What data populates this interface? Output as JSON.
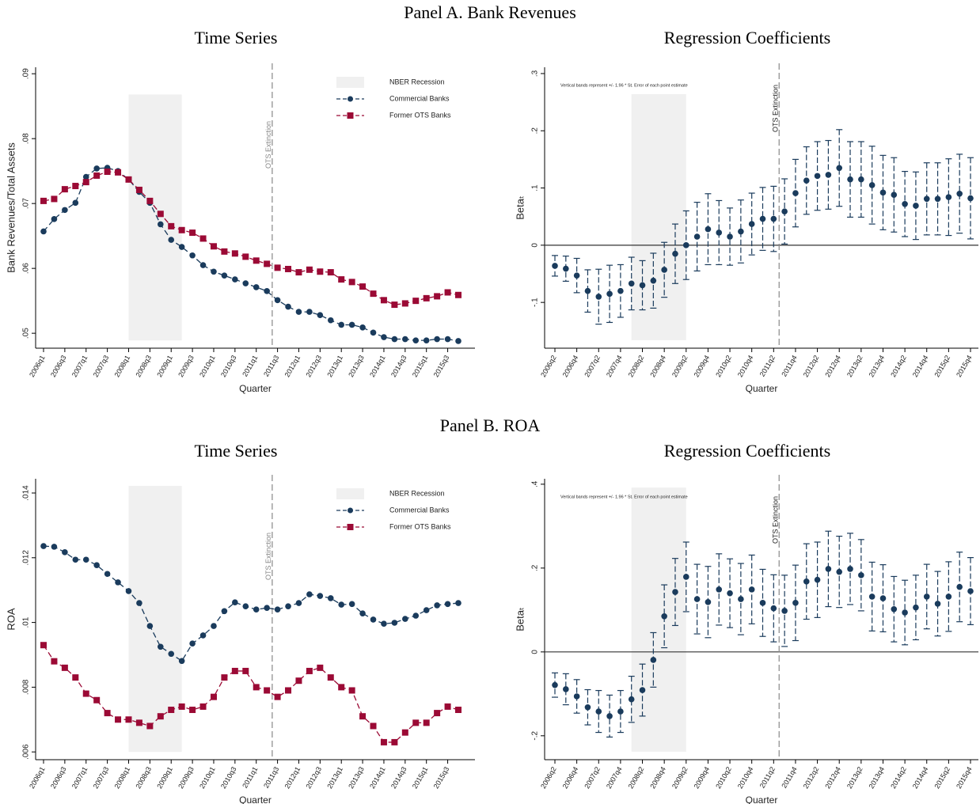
{
  "panels": [
    "Panel A. Bank Revenues",
    "Panel B. ROA"
  ],
  "chart_data": [
    {
      "type": "line",
      "title": "Time Series",
      "xlabel": "Quarter",
      "ylabel": "Bank Revenues/Total Assets",
      "categories": [
        "2006q1",
        null,
        "2006q3",
        null,
        "2007q1",
        null,
        "2007q3",
        null,
        "2008q1",
        null,
        "2008q3",
        null,
        "2009q1",
        null,
        "2009q3",
        null,
        "2010q1",
        null,
        "2010q3",
        null,
        "2011q1",
        null,
        "2011q3",
        null,
        "2012q1",
        null,
        "2012q3",
        null,
        "2013q1",
        null,
        "2013q3",
        null,
        "2014q1",
        null,
        "2014q3",
        null,
        "2015q1",
        null,
        "2015q3",
        null
      ],
      "series": [
        {
          "name": "Commercial Banks",
          "color": "#1a3b5c",
          "marker": "circle",
          "values": [
            0.0657,
            0.0676,
            0.069,
            0.0701,
            0.0741,
            0.0754,
            0.0755,
            0.075,
            0.0737,
            0.0718,
            0.0701,
            0.0668,
            0.0644,
            0.0633,
            0.062,
            0.0605,
            0.0595,
            0.0589,
            0.0583,
            0.0577,
            0.0571,
            0.0565,
            0.0551,
            0.0541,
            0.0533,
            0.0533,
            0.0528,
            0.052,
            0.0513,
            0.0513,
            0.0509,
            0.0501,
            0.0494,
            0.0491,
            0.0491,
            0.0489,
            0.0489,
            0.0491,
            0.0491,
            0.0488
          ]
        },
        {
          "name": "Former OTS Banks",
          "color": "#9b0a35",
          "marker": "square",
          "values": [
            0.0704,
            0.0707,
            0.0722,
            0.0727,
            0.0733,
            0.0743,
            0.0749,
            0.0748,
            0.0737,
            0.0721,
            0.0704,
            0.0684,
            0.0665,
            0.0659,
            0.0655,
            0.0646,
            0.0634,
            0.0626,
            0.0623,
            0.0618,
            0.0612,
            0.0607,
            0.0601,
            0.0599,
            0.0594,
            0.0598,
            0.0595,
            0.0594,
            0.0583,
            0.0579,
            0.0572,
            0.0561,
            0.0551,
            0.0544,
            0.0546,
            0.055,
            0.0554,
            0.0557,
            0.0563,
            0.0559
          ]
        }
      ],
      "ylim": [
        0.0477,
        0.091
      ],
      "yticks": [
        {
          "value": 0.05,
          "label": ".05"
        },
        {
          "value": 0.06,
          "label": ".06"
        },
        {
          "value": 0.07,
          "label": ".07"
        },
        {
          "value": 0.08,
          "label": ".08"
        },
        {
          "value": 0.09,
          "label": ".09"
        }
      ],
      "shade": {
        "name": "NBER Recession",
        "color": "#f0f0f0",
        "x": [
          8,
          13
        ],
        "y": [
          0.0489,
          0.0868
        ]
      },
      "vline": {
        "label": "OTS Extinction",
        "x": 21.5
      },
      "legend": "upper right"
    },
    {
      "type": "errorbar",
      "title": "Regression Coefficients",
      "xlabel": "Quarter",
      "ylabel": "Betaₜ",
      "note": "Vertical bands represent +/- 1.96 * St. Error of each point estimate",
      "categories": [
        "2006q2",
        null,
        "2006q4",
        null,
        "2007q2",
        null,
        "2007q4",
        null,
        "2008q2",
        null,
        "2008q4",
        null,
        "2009q2",
        null,
        "2009q4",
        null,
        "2010q2",
        null,
        "2010q4",
        null,
        "2011q2",
        null,
        "2011q4",
        null,
        "2012q2",
        null,
        "2012q4",
        null,
        "2013q2",
        null,
        "2013q4",
        null,
        "2014q2",
        null,
        "2014q4",
        null,
        "2015q2",
        null,
        "2015q4"
      ],
      "color": "#1a3b5c",
      "values": [
        -0.036,
        -0.041,
        -0.053,
        -0.08,
        -0.09,
        -0.085,
        -0.08,
        -0.067,
        -0.07,
        -0.062,
        -0.043,
        -0.015,
        0.0,
        0.015,
        0.028,
        0.022,
        0.015,
        0.024,
        0.037,
        0.046,
        0.046,
        0.059,
        0.091,
        0.113,
        0.121,
        0.123,
        0.135,
        0.115,
        0.115,
        0.105,
        0.092,
        0.088,
        0.072,
        0.069,
        0.081,
        0.081,
        0.084,
        0.09,
        0.082
      ],
      "errors": [
        0.018,
        0.022,
        0.03,
        0.037,
        0.048,
        0.05,
        0.046,
        0.046,
        0.043,
        0.048,
        0.048,
        0.052,
        0.06,
        0.06,
        0.062,
        0.056,
        0.05,
        0.055,
        0.054,
        0.055,
        0.057,
        0.057,
        0.059,
        0.059,
        0.06,
        0.06,
        0.067,
        0.066,
        0.066,
        0.068,
        0.065,
        0.065,
        0.057,
        0.059,
        0.063,
        0.063,
        0.067,
        0.069,
        0.071
      ],
      "ylim": [
        -0.18,
        0.311
      ],
      "yticks": [
        {
          "value": -0.1,
          "label": "-.1"
        },
        0,
        {
          "value": 0.1,
          "label": ".1"
        },
        {
          "value": 0.2,
          "label": ".2"
        },
        {
          "value": 0.3,
          "label": ".3"
        }
      ],
      "shade": {
        "color": "#f0f0f0",
        "x": [
          7,
          12
        ],
        "y": [
          -0.166,
          0.264
        ]
      },
      "vline": {
        "label": "OTS Extinction",
        "x": 20.5
      },
      "zero_line": true
    },
    {
      "type": "line",
      "title": "Time Series",
      "xlabel": "Quarter",
      "ylabel": "ROA",
      "categories": [
        "2006q1",
        null,
        "2006q3",
        null,
        "2007q1",
        null,
        "2007q3",
        null,
        "2008q1",
        null,
        "2008q3",
        null,
        "2009q1",
        null,
        "2009q3",
        null,
        "2010q1",
        null,
        "2010q3",
        null,
        "2011q1",
        null,
        "2011q3",
        null,
        "2012q1",
        null,
        "2012q3",
        null,
        "2013q1",
        null,
        "2013q3",
        null,
        "2014q1",
        null,
        "2014q3",
        null,
        "2015q1",
        null,
        "2015q3",
        null
      ],
      "series": [
        {
          "name": "Commercial Banks",
          "color": "#1a3b5c",
          "marker": "circle",
          "values": [
            0.01236,
            0.01234,
            0.01217,
            0.01194,
            0.01194,
            0.01177,
            0.0115,
            0.01124,
            0.01097,
            0.0106,
            0.00989,
            0.00925,
            0.00903,
            0.00881,
            0.00935,
            0.0096,
            0.00989,
            0.01035,
            0.01062,
            0.0105,
            0.0104,
            0.01045,
            0.0104,
            0.0105,
            0.0106,
            0.01087,
            0.01082,
            0.01075,
            0.01055,
            0.01057,
            0.01028,
            0.01009,
            0.00996,
            0.00999,
            0.01011,
            0.01021,
            0.01038,
            0.01053,
            0.01057,
            0.0106
          ]
        },
        {
          "name": "Former OTS Banks",
          "color": "#9b0a35",
          "marker": "square",
          "values": [
            0.0093,
            0.0088,
            0.0086,
            0.0083,
            0.0078,
            0.0076,
            0.0072,
            0.007,
            0.007,
            0.0069,
            0.0068,
            0.0071,
            0.0073,
            0.0074,
            0.0073,
            0.0074,
            0.0077,
            0.0083,
            0.0085,
            0.0085,
            0.008,
            0.0079,
            0.0077,
            0.0079,
            0.0082,
            0.0085,
            0.0086,
            0.0083,
            0.008,
            0.0079,
            0.0071,
            0.0068,
            0.0063,
            0.0063,
            0.0066,
            0.0069,
            0.0069,
            0.0072,
            0.0074,
            0.0073
          ]
        }
      ],
      "ylim": [
        0.00576,
        0.01444
      ],
      "yticks": [
        {
          "value": 0.006,
          "label": ".006"
        },
        {
          "value": 0.008,
          "label": ".008"
        },
        {
          "value": 0.01,
          "label": ".01"
        },
        {
          "value": 0.012,
          "label": ".012"
        },
        {
          "value": 0.014,
          "label": ".014"
        }
      ],
      "shade": {
        "name": "NBER Recession",
        "color": "#f0f0f0",
        "x": [
          8,
          13
        ],
        "y": [
          0.006,
          0.01422
        ]
      },
      "vline": {
        "label": "OTS Extinction",
        "x": 21.5
      },
      "legend": "upper right"
    },
    {
      "type": "errorbar",
      "title": "Regression Coefficients",
      "xlabel": "Quarter",
      "ylabel": "Betaₜ",
      "note": "Vertical bands represent +/- 1.96 * St. Error of each point estimate",
      "categories": [
        "2006q2",
        null,
        "2006q4",
        null,
        "2007q2",
        null,
        "2007q4",
        null,
        "2008q2",
        null,
        "2008q4",
        null,
        "2009q2",
        null,
        "2009q4",
        null,
        "2010q2",
        null,
        "2010q4",
        null,
        "2011q2",
        null,
        "2011q4",
        null,
        "2012q2",
        null,
        "2012q4",
        null,
        "2013q2",
        null,
        "2013q4",
        null,
        "2014q2",
        null,
        "2014q4",
        null,
        "2015q2",
        null,
        "2015q4"
      ],
      "color": "#1a3b5c",
      "values": [
        -0.079,
        -0.089,
        -0.106,
        -0.132,
        -0.142,
        -0.153,
        -0.142,
        -0.113,
        -0.091,
        -0.019,
        0.085,
        0.143,
        0.179,
        0.126,
        0.119,
        0.149,
        0.14,
        0.126,
        0.149,
        0.117,
        0.104,
        0.098,
        0.117,
        0.168,
        0.172,
        0.198,
        0.191,
        0.198,
        0.183,
        0.132,
        0.128,
        0.102,
        0.094,
        0.106,
        0.132,
        0.115,
        0.132,
        0.155,
        0.145
      ],
      "errors": [
        0.029,
        0.037,
        0.04,
        0.042,
        0.05,
        0.05,
        0.05,
        0.055,
        0.062,
        0.065,
        0.075,
        0.08,
        0.083,
        0.083,
        0.085,
        0.085,
        0.082,
        0.085,
        0.082,
        0.08,
        0.08,
        0.085,
        0.09,
        0.09,
        0.09,
        0.09,
        0.085,
        0.085,
        0.085,
        0.082,
        0.08,
        0.078,
        0.077,
        0.077,
        0.077,
        0.077,
        0.083,
        0.083,
        0.08
      ],
      "ylim": [
        -0.257,
        0.413
      ],
      "yticks": [
        {
          "value": -0.2,
          "label": "-.2"
        },
        0,
        {
          "value": 0.2,
          "label": ".2"
        },
        {
          "value": 0.4,
          "label": ".4"
        }
      ],
      "shade": {
        "color": "#f0f0f0",
        "x": [
          7,
          12
        ],
        "y": [
          -0.238,
          0.392
        ]
      },
      "vline": {
        "label": "OTS Extinction",
        "x": 20.5
      },
      "zero_line": true
    }
  ]
}
